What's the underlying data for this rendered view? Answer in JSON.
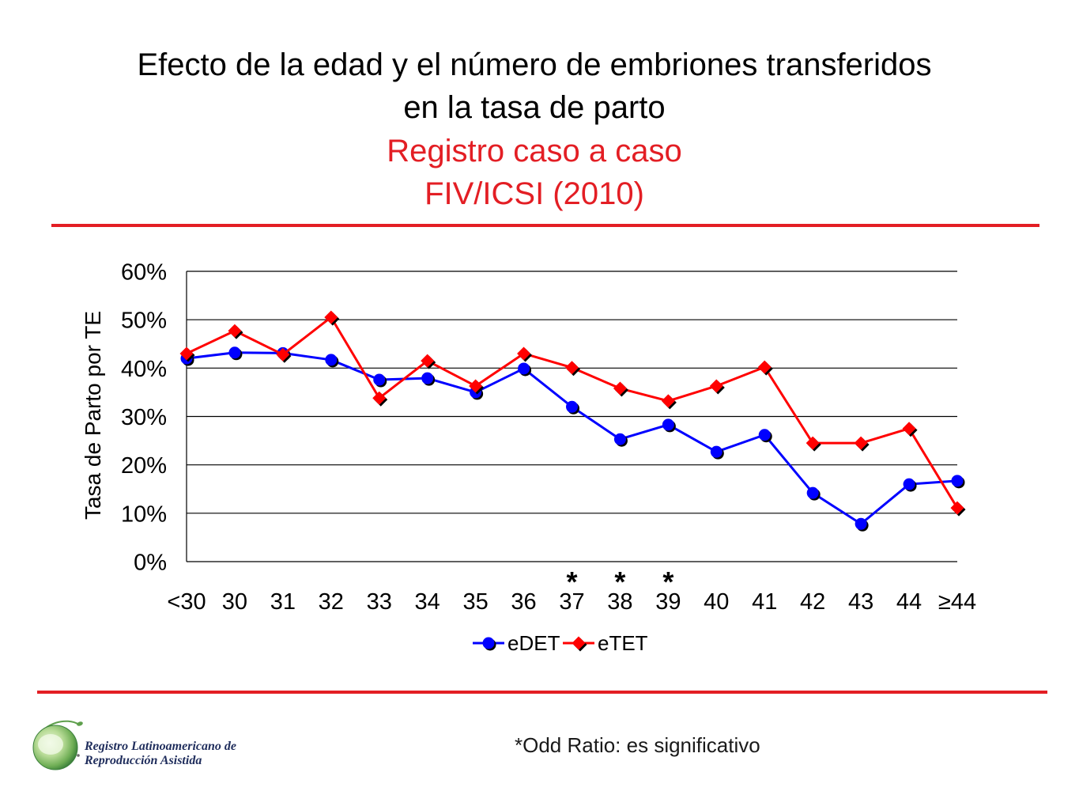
{
  "title": {
    "line1": "Efecto de la edad y el número de embriones transferidos",
    "line2": "en la tasa de parto",
    "line3": "Registro caso a caso",
    "line4": "FIV/ICSI (2010)"
  },
  "colors": {
    "title_red": "#e31e24",
    "rule_red": "#e31e24",
    "edet_blue": "#0000ff",
    "etet_red": "#ff0000",
    "logo_green": "#4e9a45",
    "logo_text": "#1f2d5c"
  },
  "chart_data": {
    "type": "line",
    "xlabel": "",
    "ylabel": "Tasa de Parto por TE",
    "categories": [
      "<30",
      "30",
      "31",
      "32",
      "33",
      "34",
      "35",
      "36",
      "37",
      "38",
      "39",
      "40",
      "41",
      "42",
      "43",
      "44",
      "≥44"
    ],
    "ylim": [
      0,
      60
    ],
    "y_ticks": [
      0,
      10,
      20,
      30,
      40,
      50,
      60
    ],
    "y_tick_labels": [
      "0%",
      "10%",
      "20%",
      "30%",
      "40%",
      "50%",
      "60%"
    ],
    "grid": true,
    "legend_position": "bottom",
    "series": [
      {
        "name": "eDET",
        "marker": "circle",
        "color": "#0000ff",
        "values": [
          42.0,
          43.2,
          43.1,
          41.7,
          37.6,
          37.9,
          35.0,
          39.9,
          32.0,
          25.3,
          28.3,
          22.7,
          26.2,
          14.2,
          7.8,
          16.0,
          16.7
        ]
      },
      {
        "name": "eTET",
        "marker": "diamond",
        "color": "#ff0000",
        "values": [
          43.0,
          47.7,
          42.8,
          50.5,
          33.8,
          41.5,
          36.3,
          43.0,
          40.1,
          35.8,
          33.2,
          36.3,
          40.2,
          24.5,
          24.5,
          27.5,
          11.1
        ]
      }
    ],
    "annotations": [
      {
        "category": "37",
        "text": "*"
      },
      {
        "category": "38",
        "text": "*"
      },
      {
        "category": "39",
        "text": "*"
      }
    ]
  },
  "footnote": "*Odd Ratio: es significativo",
  "logo": {
    "icon": "globe-logo-icon",
    "line1": "Registro Latinoamericano de",
    "line2": "Reproducción Asistida"
  }
}
